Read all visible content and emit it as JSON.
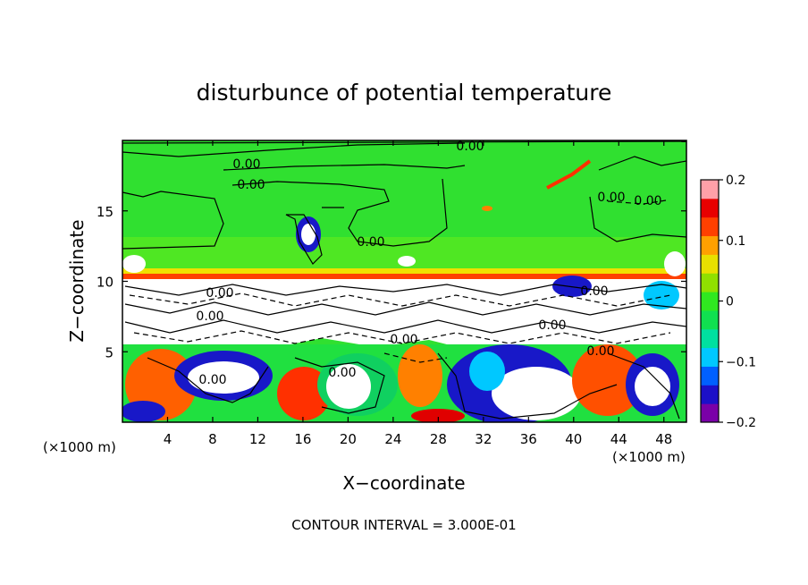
{
  "chart_data": {
    "type": "heatmap",
    "title": "disturbunce of potential temperature",
    "xlabel": "X−coordinate",
    "ylabel": "Z−coordinate",
    "x_unit": "(×1000 m)",
    "y_unit": "(×1000 m)",
    "xlim": [
      0,
      50
    ],
    "ylim": [
      0,
      20
    ],
    "x_ticks": [
      4,
      8,
      12,
      16,
      20,
      24,
      28,
      32,
      36,
      40,
      44,
      48
    ],
    "y_ticks": [
      5,
      10,
      15
    ],
    "colorbar": {
      "range": [
        -0.2,
        0.2
      ],
      "ticks": [
        "0.2",
        "0.1",
        "0",
        "−0.1",
        "−0.2"
      ],
      "colors": [
        "#7a00a8",
        "#1c10c8",
        "#0060ff",
        "#00c8ff",
        "#00e0a0",
        "#10e050",
        "#30e820",
        "#90e000",
        "#e8e000",
        "#ffa000",
        "#ff4000",
        "#e80000",
        "#ffa0a8"
      ]
    },
    "contour_interval_text": "CONTOUR INTERVAL = 3.000E-01",
    "contour_labels": [
      "0.00",
      "0.00",
      "0.00",
      "0.00",
      "0.00",
      "0.00",
      "0.00",
      "0.00",
      "0.00",
      "0.00",
      "0.00",
      "0.00",
      "0.00",
      "0.00"
    ]
  }
}
